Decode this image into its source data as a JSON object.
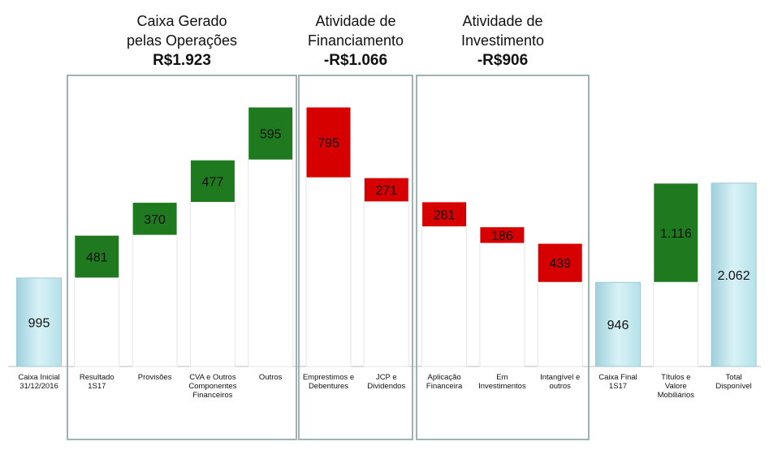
{
  "chart_data": {
    "type": "waterfall",
    "categories": [
      "Caixa Inicial\n31/12/2016",
      "Resultado\n1S17",
      "Provisões",
      "CVA e Outros\nComponentes\nFinanceiros",
      "Outros",
      "Emprestimos e\nDebentures",
      "JCP e\nDividendos",
      "Aplicação\nFinanceira",
      "Em\nInvestimentos",
      "Intangível e\noutros",
      "Caixa Final\n1S17",
      "Títulos e\nValore\nMobiliários",
      "Total\nDisponível"
    ],
    "values": [
      995,
      481,
      370,
      477,
      595,
      -795,
      -271,
      -281,
      -186,
      -439,
      946,
      1116,
      2062
    ],
    "value_labels": [
      "995",
      "481",
      "370",
      "477",
      "595",
      "795",
      "271",
      "281",
      "186",
      "439",
      "946",
      "1.116",
      "2.062"
    ],
    "totals": [
      0,
      10,
      12
    ],
    "colors": {
      "total": "#bfe7ef",
      "increase": "#1f7a1f",
      "decrease": "#d60000"
    },
    "annotations": [
      {
        "title": "Caixa Gerado\npelas Operações",
        "total": "R$1.923"
      },
      {
        "title": "Atividade de\nFinanciamento",
        "total": "-R$1.066"
      },
      {
        "title": "Atividade de\nInvestimento",
        "total": "-R$906"
      }
    ]
  }
}
